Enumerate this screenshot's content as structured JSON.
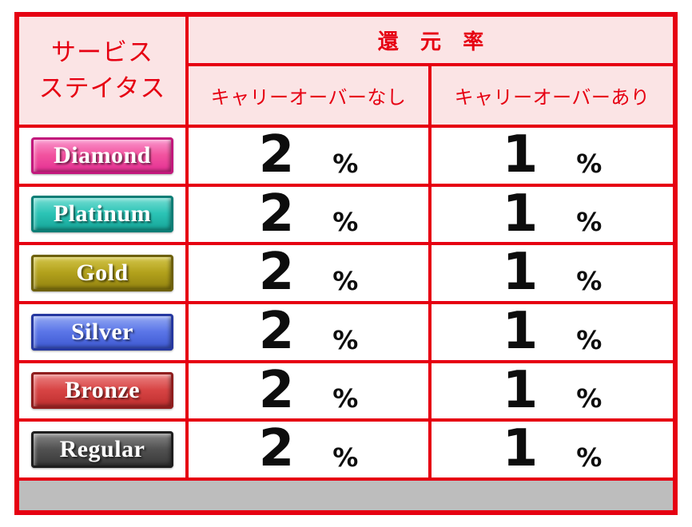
{
  "colors": {
    "border_red": "#e60012",
    "header_bg": "#fbe4e5",
    "header_text": "#e60012",
    "row_bg": "#ffffff",
    "value_text": "#0d0d0d",
    "footer_gray": "#bdbdbd"
  },
  "table": {
    "header": {
      "service_status_line1": "サービス",
      "service_status_line2": "ステイタス",
      "rate_title": "還 元 率",
      "col_no_carryover": "キャリーオーバーなし",
      "col_with_carryover": "キャリーオーバーあり"
    },
    "rows": [
      {
        "tier": "Diamond",
        "badge": {
          "light": "#fa9ed2",
          "mid": "#f2539f",
          "dark": "#e22a91",
          "frame": "#c2187c"
        },
        "no_carryover": "2",
        "with_carryover": "1",
        "unit": "%"
      },
      {
        "tier": "Platinum",
        "badge": {
          "light": "#7fe0d6",
          "mid": "#2cc4b6",
          "dark": "#12a093",
          "frame": "#0b7e76"
        },
        "no_carryover": "2",
        "with_carryover": "1",
        "unit": "%"
      },
      {
        "tier": "Gold",
        "badge": {
          "light": "#d8ca50",
          "mid": "#b3a21c",
          "dark": "#8e7e0e",
          "frame": "#6e6108"
        },
        "no_carryover": "2",
        "with_carryover": "1",
        "unit": "%"
      },
      {
        "tier": "Silver",
        "badge": {
          "light": "#9cb0f4",
          "mid": "#5b76e8",
          "dark": "#3a55ce",
          "frame": "#2638a0"
        },
        "no_carryover": "2",
        "with_carryover": "1",
        "unit": "%"
      },
      {
        "tier": "Bronze",
        "badge": {
          "light": "#ee8c8c",
          "mid": "#d84545",
          "dark": "#ba2b2b",
          "frame": "#8f1e1e"
        },
        "no_carryover": "2",
        "with_carryover": "1",
        "unit": "%"
      },
      {
        "tier": "Regular",
        "badge": {
          "light": "#8e8e8e",
          "mid": "#525252",
          "dark": "#353535",
          "frame": "#1e1e1e"
        },
        "no_carryover": "2",
        "with_carryover": "1",
        "unit": "%"
      }
    ]
  }
}
